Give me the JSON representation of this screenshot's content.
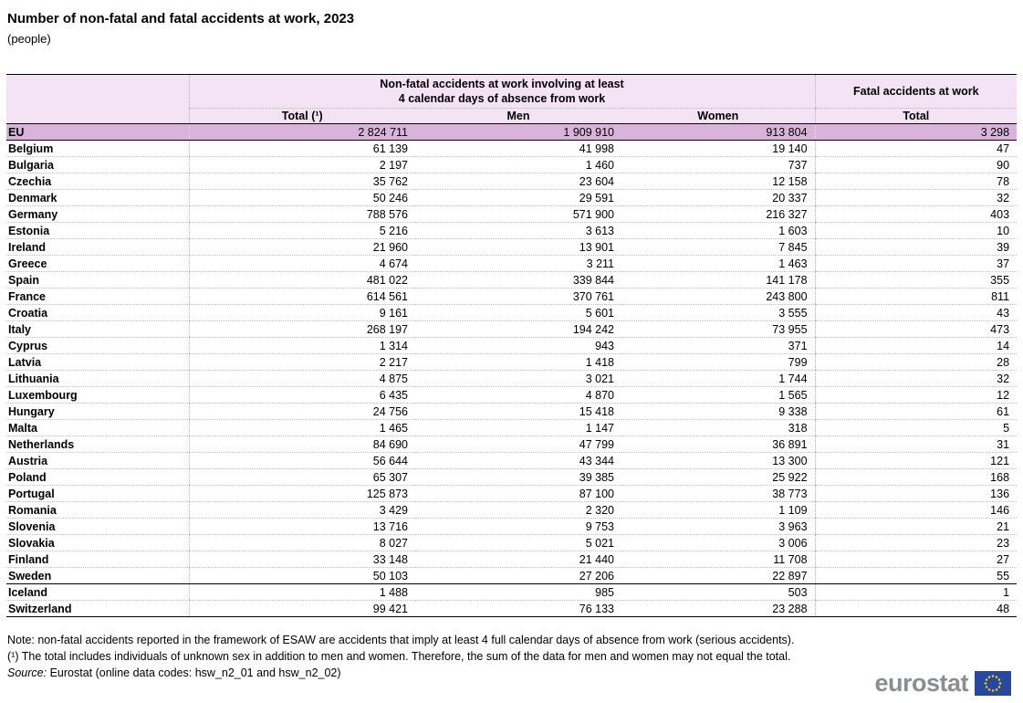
{
  "title": "Number of non-fatal and fatal accidents at work, 2023",
  "subtitle": "(people)",
  "table": {
    "group_headers": {
      "nonfatal_line1": "Non-fatal accidents at work involving at least",
      "nonfatal_line2": "4 calendar days of absence from work",
      "fatal": "Fatal accidents at work"
    },
    "columns": [
      "Total (¹)",
      "Men",
      "Women",
      "Total"
    ],
    "rows": [
      {
        "country": "EU",
        "values": [
          "2 824 711",
          "1 909 910",
          "913 804",
          "3 298"
        ],
        "highlight": true
      },
      {
        "country": "Belgium",
        "values": [
          "61 139",
          "41 998",
          "19 140",
          "47"
        ]
      },
      {
        "country": "Bulgaria",
        "values": [
          "2 197",
          "1 460",
          "737",
          "90"
        ]
      },
      {
        "country": "Czechia",
        "values": [
          "35 762",
          "23 604",
          "12 158",
          "78"
        ]
      },
      {
        "country": "Denmark",
        "values": [
          "50 246",
          "29 591",
          "20 337",
          "32"
        ]
      },
      {
        "country": "Germany",
        "values": [
          "788 576",
          "571 900",
          "216 327",
          "403"
        ]
      },
      {
        "country": "Estonia",
        "values": [
          "5 216",
          "3 613",
          "1 603",
          "10"
        ]
      },
      {
        "country": "Ireland",
        "values": [
          "21 960",
          "13 901",
          "7 845",
          "39"
        ]
      },
      {
        "country": "Greece",
        "values": [
          "4 674",
          "3 211",
          "1 463",
          "37"
        ]
      },
      {
        "country": "Spain",
        "values": [
          "481 022",
          "339 844",
          "141 178",
          "355"
        ]
      },
      {
        "country": "France",
        "values": [
          "614 561",
          "370 761",
          "243 800",
          "811"
        ]
      },
      {
        "country": "Croatia",
        "values": [
          "9 161",
          "5 601",
          "3 555",
          "43"
        ]
      },
      {
        "country": "Italy",
        "values": [
          "268 197",
          "194 242",
          "73 955",
          "473"
        ]
      },
      {
        "country": "Cyprus",
        "values": [
          "1 314",
          "943",
          "371",
          "14"
        ]
      },
      {
        "country": "Latvia",
        "values": [
          "2 217",
          "1 418",
          "799",
          "28"
        ]
      },
      {
        "country": "Lithuania",
        "values": [
          "4 875",
          "3 021",
          "1 744",
          "32"
        ]
      },
      {
        "country": "Luxembourg",
        "values": [
          "6 435",
          "4 870",
          "1 565",
          "12"
        ]
      },
      {
        "country": "Hungary",
        "values": [
          "24 756",
          "15 418",
          "9 338",
          "61"
        ]
      },
      {
        "country": "Malta",
        "values": [
          "1 465",
          "1 147",
          "318",
          "5"
        ]
      },
      {
        "country": "Netherlands",
        "values": [
          "84 690",
          "47 799",
          "36 891",
          "31"
        ]
      },
      {
        "country": "Austria",
        "values": [
          "56 644",
          "43 344",
          "13 300",
          "121"
        ]
      },
      {
        "country": "Poland",
        "values": [
          "65 307",
          "39 385",
          "25 922",
          "168"
        ]
      },
      {
        "country": "Portugal",
        "values": [
          "125 873",
          "87 100",
          "38 773",
          "136"
        ]
      },
      {
        "country": "Romania",
        "values": [
          "3 429",
          "2 320",
          "1 109",
          "146"
        ]
      },
      {
        "country": "Slovenia",
        "values": [
          "13 716",
          "9 753",
          "3 963",
          "21"
        ]
      },
      {
        "country": "Slovakia",
        "values": [
          "8 027",
          "5 021",
          "3 006",
          "23"
        ]
      },
      {
        "country": "Finland",
        "values": [
          "33 148",
          "21 440",
          "11 708",
          "27"
        ]
      },
      {
        "country": "Sweden",
        "values": [
          "50 103",
          "27 206",
          "22 897",
          "55"
        ],
        "section_end": true
      },
      {
        "country": "Iceland",
        "values": [
          "1 488",
          "985",
          "503",
          "1"
        ]
      },
      {
        "country": "Switzerland",
        "values": [
          "99 421",
          "76 133",
          "23 288",
          "48"
        ]
      }
    ]
  },
  "notes": {
    "note": "Note: non-fatal accidents reported in the framework of ESAW are accidents that imply at least 4 full calendar days of absence from work (serious accidents).",
    "footnote": "(¹) The total includes individuals of unknown sex in addition to men and women. Therefore, the sum of the data for men and women may not equal the total.",
    "source_label": "Source:",
    "source_text": " Eurostat (online data codes: hsw_n2_01 and hsw_n2_02)"
  },
  "footer": {
    "logo_text": "eurostat"
  },
  "colors": {
    "header_bg": "#f4e3f4",
    "eu_row_bg": "#d9b3da",
    "logo_gray": "#8b8e91",
    "flag_blue": "#27489c",
    "flag_stars": "#ffcc00"
  },
  "chart_data": {
    "type": "table",
    "title": "Number of non-fatal and fatal accidents at work, 2023",
    "unit": "people",
    "categories": [
      "EU",
      "Belgium",
      "Bulgaria",
      "Czechia",
      "Denmark",
      "Germany",
      "Estonia",
      "Ireland",
      "Greece",
      "Spain",
      "France",
      "Croatia",
      "Italy",
      "Cyprus",
      "Latvia",
      "Lithuania",
      "Luxembourg",
      "Hungary",
      "Malta",
      "Netherlands",
      "Austria",
      "Poland",
      "Portugal",
      "Romania",
      "Slovenia",
      "Slovakia",
      "Finland",
      "Sweden",
      "Iceland",
      "Switzerland"
    ],
    "series": [
      {
        "name": "Non-fatal accidents at work (>=4 days absence) - Total",
        "values": [
          2824711,
          61139,
          2197,
          35762,
          50246,
          788576,
          5216,
          21960,
          4674,
          481022,
          614561,
          9161,
          268197,
          1314,
          2217,
          4875,
          6435,
          24756,
          1465,
          84690,
          56644,
          65307,
          125873,
          3429,
          13716,
          8027,
          33148,
          50103,
          1488,
          99421
        ]
      },
      {
        "name": "Non-fatal accidents at work (>=4 days absence) - Men",
        "values": [
          1909910,
          41998,
          1460,
          23604,
          29591,
          571900,
          3613,
          13901,
          3211,
          339844,
          370761,
          5601,
          194242,
          943,
          1418,
          3021,
          4870,
          15418,
          1147,
          47799,
          43344,
          39385,
          87100,
          2320,
          9753,
          5021,
          21440,
          27206,
          985,
          76133
        ]
      },
      {
        "name": "Non-fatal accidents at work (>=4 days absence) - Women",
        "values": [
          913804,
          19140,
          737,
          12158,
          20337,
          216327,
          1603,
          7845,
          1463,
          141178,
          243800,
          3555,
          73955,
          371,
          799,
          1744,
          1565,
          9338,
          318,
          36891,
          13300,
          25922,
          38773,
          1109,
          3963,
          3006,
          11708,
          22897,
          503,
          23288
        ]
      },
      {
        "name": "Fatal accidents at work - Total",
        "values": [
          3298,
          47,
          90,
          78,
          32,
          403,
          10,
          39,
          37,
          355,
          811,
          43,
          473,
          14,
          28,
          32,
          12,
          61,
          5,
          31,
          121,
          168,
          136,
          146,
          21,
          23,
          27,
          55,
          1,
          48
        ]
      }
    ]
  }
}
